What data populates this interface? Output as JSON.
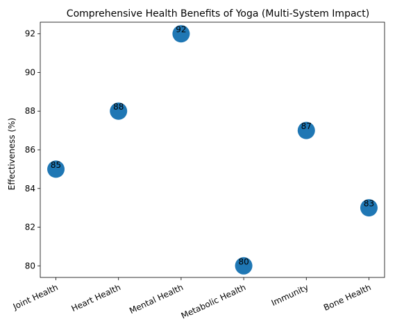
{
  "chart_data": {
    "type": "scatter",
    "title": "Comprehensive Health Benefits of Yoga (Multi-System Impact)",
    "xlabel": "",
    "ylabel": "Effectiveness (%)",
    "categories": [
      "Joint Health",
      "Heart Health",
      "Mental Health",
      "Metabolic Health",
      "Immunity",
      "Bone Health"
    ],
    "values": [
      85,
      88,
      92,
      80,
      87,
      83
    ],
    "data_labels": [
      "85",
      "88",
      "92",
      "80",
      "87",
      "83"
    ],
    "ylim": [
      79.4,
      92.6
    ],
    "yticks": [
      80,
      82,
      84,
      86,
      88,
      90,
      92
    ],
    "ytick_labels": [
      "80",
      "82",
      "84",
      "86",
      "88",
      "90",
      "92"
    ],
    "xtick_rotation_deg": 25,
    "grid": false,
    "legend": "none",
    "marker_color": "#1f77b4"
  }
}
